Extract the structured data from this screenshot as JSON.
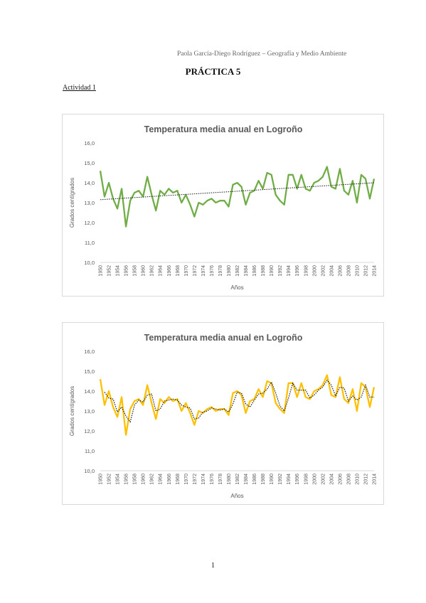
{
  "header": {
    "author_note": "Paola García-Diego Rodríguez – Geografía y Medio Ambiente",
    "title": "PRÁCTICA 5",
    "section": "Actividad 1"
  },
  "footer": {
    "page_number": "1"
  },
  "chart_data": [
    {
      "type": "line",
      "title": "Temperatura media anual en Logroño",
      "xlabel": "Años",
      "ylabel": "Grados centígrados",
      "ylim": [
        10.0,
        16.0
      ],
      "yticks": [
        "10,0",
        "11,0",
        "12,0",
        "13,0",
        "14,0",
        "15,0",
        "16,0"
      ],
      "x": [
        1950,
        1951,
        1952,
        1953,
        1954,
        1955,
        1956,
        1957,
        1958,
        1959,
        1960,
        1961,
        1962,
        1963,
        1964,
        1965,
        1966,
        1967,
        1968,
        1969,
        1970,
        1971,
        1972,
        1973,
        1974,
        1975,
        1976,
        1977,
        1978,
        1979,
        1980,
        1981,
        1982,
        1983,
        1984,
        1985,
        1986,
        1987,
        1988,
        1989,
        1990,
        1991,
        1992,
        1993,
        1994,
        1995,
        1996,
        1997,
        1998,
        1999,
        2000,
        2001,
        2002,
        2003,
        2004,
        2005,
        2006,
        2007,
        2008,
        2009,
        2010,
        2011,
        2012,
        2013,
        2014
      ],
      "xtick_labels": [
        "1950",
        "1952",
        "1954",
        "1956",
        "1958",
        "1960",
        "1962",
        "1964",
        "1966",
        "1968",
        "1970",
        "1972",
        "1974",
        "1976",
        "1978",
        "1980",
        "1982",
        "1984",
        "1986",
        "1988",
        "1990",
        "1992",
        "1994",
        "1996",
        "1998",
        "2000",
        "2002",
        "2004",
        "2006",
        "2008",
        "2010",
        "2012",
        "2014"
      ],
      "series": [
        {
          "values": [
            14.6,
            13.3,
            14.0,
            13.2,
            12.7,
            13.7,
            11.8,
            13.1,
            13.5,
            13.6,
            13.3,
            14.3,
            13.4,
            12.6,
            13.6,
            13.4,
            13.7,
            13.5,
            13.6,
            13.0,
            13.4,
            12.9,
            12.3,
            13.0,
            12.9,
            13.1,
            13.2,
            13.0,
            13.1,
            13.1,
            12.8,
            13.9,
            14.0,
            13.8,
            12.9,
            13.5,
            13.6,
            14.1,
            13.7,
            14.5,
            14.4,
            13.4,
            13.1,
            12.9,
            14.4,
            14.4,
            13.7,
            14.4,
            13.7,
            13.6,
            14.0,
            14.1,
            14.3,
            14.8,
            13.8,
            13.7,
            14.7,
            13.6,
            13.4,
            14.1,
            13.0,
            14.4,
            14.2,
            13.2,
            14.2
          ],
          "color": "#70ad47"
        }
      ],
      "trendline": {
        "kind": "linear",
        "from": 13.15,
        "to": 14.0,
        "color": "#1a1a1a"
      },
      "grid": false,
      "legend": "none"
    },
    {
      "type": "line",
      "title": "Temperatura media anual en Logroño",
      "xlabel": "Años",
      "ylabel": "Grados centígrados",
      "ylim": [
        10.0,
        16.0
      ],
      "yticks": [
        "10,0",
        "11,0",
        "12,0",
        "13,0",
        "14,0",
        "15,0",
        "16,0"
      ],
      "x": [
        1950,
        1951,
        1952,
        1953,
        1954,
        1955,
        1956,
        1957,
        1958,
        1959,
        1960,
        1961,
        1962,
        1963,
        1964,
        1965,
        1966,
        1967,
        1968,
        1969,
        1970,
        1971,
        1972,
        1973,
        1974,
        1975,
        1976,
        1977,
        1978,
        1979,
        1980,
        1981,
        1982,
        1983,
        1984,
        1985,
        1986,
        1987,
        1988,
        1989,
        1990,
        1991,
        1992,
        1993,
        1994,
        1995,
        1996,
        1997,
        1998,
        1999,
        2000,
        2001,
        2002,
        2003,
        2004,
        2005,
        2006,
        2007,
        2008,
        2009,
        2010,
        2011,
        2012,
        2013,
        2014
      ],
      "xtick_labels": [
        "1950",
        "1952",
        "1954",
        "1956",
        "1958",
        "1960",
        "1962",
        "1964",
        "1966",
        "1968",
        "1970",
        "1972",
        "1974",
        "1976",
        "1978",
        "1980",
        "1982",
        "1984",
        "1986",
        "1988",
        "1990",
        "1992",
        "1994",
        "1996",
        "1998",
        "2000",
        "2002",
        "2004",
        "2006",
        "2008",
        "2010",
        "2012",
        "2014"
      ],
      "series": [
        {
          "values": [
            14.6,
            13.3,
            14.0,
            13.2,
            12.7,
            13.7,
            11.8,
            13.1,
            13.5,
            13.6,
            13.3,
            14.3,
            13.4,
            12.6,
            13.6,
            13.4,
            13.7,
            13.5,
            13.6,
            13.0,
            13.4,
            12.9,
            12.3,
            13.0,
            12.9,
            13.1,
            13.2,
            13.0,
            13.1,
            13.1,
            12.8,
            13.9,
            14.0,
            13.8,
            12.9,
            13.5,
            13.6,
            14.1,
            13.7,
            14.5,
            14.4,
            13.4,
            13.1,
            12.9,
            14.4,
            14.4,
            13.7,
            14.4,
            13.7,
            13.6,
            14.0,
            14.1,
            14.3,
            14.8,
            13.8,
            13.7,
            14.7,
            13.6,
            13.4,
            14.1,
            13.0,
            14.4,
            14.2,
            13.2,
            14.2
          ],
          "color": "#ffc000"
        }
      ],
      "trendline": {
        "kind": "moving-average",
        "period": 2,
        "color": "#1a1a1a"
      },
      "grid": false,
      "legend": "none"
    }
  ]
}
